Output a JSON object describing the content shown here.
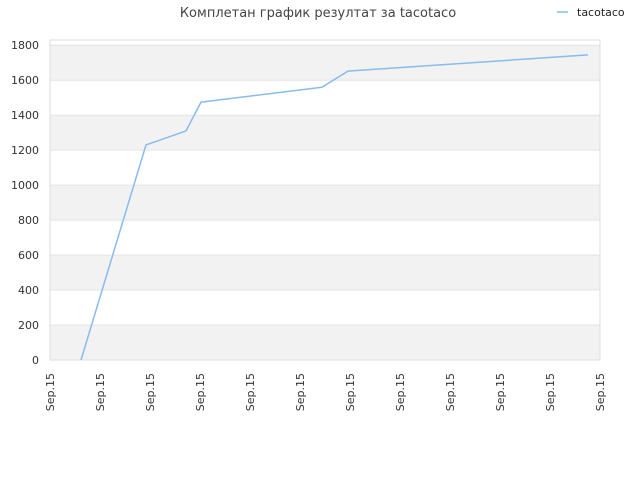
{
  "chart_data": {
    "type": "line",
    "title": "Комплетан график резултат за tacotaco",
    "xlabel": "",
    "ylabel": "",
    "ylim": [
      0,
      1830
    ],
    "y_ticks": [
      0,
      200,
      400,
      600,
      800,
      1000,
      1200,
      1400,
      1600,
      1800
    ],
    "x_tick_labels": [
      "Sep.15",
      "Sep.15",
      "Sep.15",
      "Sep.15",
      "Sep.15",
      "Sep.15",
      "Sep.15",
      "Sep.15",
      "Sep.15",
      "Sep.15",
      "Sep.15",
      "Sep.15"
    ],
    "grid": true,
    "legend_position": "top-right",
    "series": [
      {
        "name": "tacotaco",
        "color": "#88bbee",
        "x": [
          0.62,
          1.92,
          2.72,
          3.02,
          5.44,
          5.96,
          10.76
        ],
        "values": [
          0,
          1230,
          1310,
          1475,
          1560,
          1652,
          1745
        ]
      }
    ]
  },
  "colors": {
    "band": "#f2f2f2",
    "gridline": "#e4e4e4",
    "axis_text": "#333333",
    "title_text": "#444444"
  }
}
